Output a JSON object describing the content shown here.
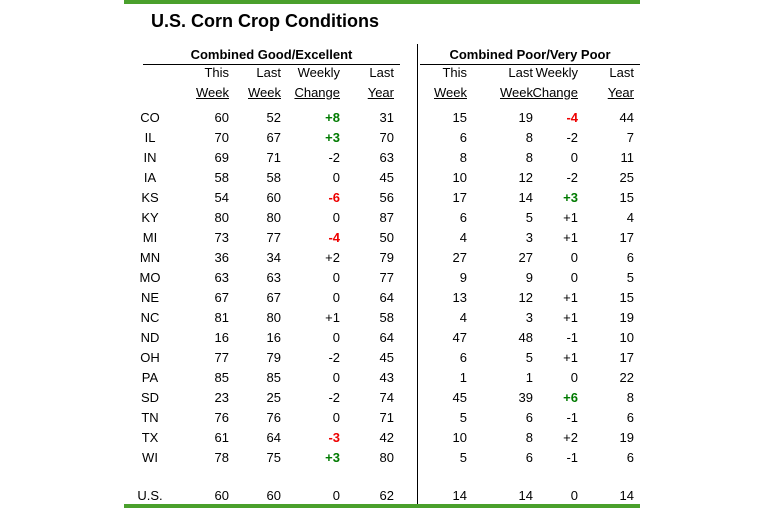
{
  "title": "U.S. Corn Crop Conditions",
  "headers": {
    "line1": [
      "This",
      "Last",
      "Weekly",
      "Last"
    ],
    "line2": [
      "Week",
      "Week",
      "Change",
      "Year"
    ]
  },
  "colors": {
    "accent_bar": "#4aa02c",
    "positive_change": "#007a00",
    "negative_change": "#ee0000",
    "divider": "#000000"
  },
  "chart_data": {
    "type": "table",
    "title": "U.S. Corn Crop Conditions",
    "column_groups": [
      "Combined Good/Excellent",
      "Combined Poor/Very Poor"
    ],
    "columns": [
      "This Week",
      "Last Week",
      "Weekly Change",
      "Last Year"
    ],
    "rows": [
      {
        "state": "CO",
        "good_excellent": [
          "60",
          "52",
          "+8",
          "31"
        ],
        "poor_very_poor": [
          "15",
          "19",
          "-4",
          "44"
        ]
      },
      {
        "state": "IL",
        "good_excellent": [
          "70",
          "67",
          "+3",
          "70"
        ],
        "poor_very_poor": [
          "6",
          "8",
          "-2",
          "7"
        ]
      },
      {
        "state": "IN",
        "good_excellent": [
          "69",
          "71",
          "-2",
          "63"
        ],
        "poor_very_poor": [
          "8",
          "8",
          "0",
          "11"
        ]
      },
      {
        "state": "IA",
        "good_excellent": [
          "58",
          "58",
          "0",
          "45"
        ],
        "poor_very_poor": [
          "10",
          "12",
          "-2",
          "25"
        ]
      },
      {
        "state": "KS",
        "good_excellent": [
          "54",
          "60",
          "-6",
          "56"
        ],
        "poor_very_poor": [
          "17",
          "14",
          "+3",
          "15"
        ]
      },
      {
        "state": "KY",
        "good_excellent": [
          "80",
          "80",
          "0",
          "87"
        ],
        "poor_very_poor": [
          "6",
          "5",
          "+1",
          "4"
        ]
      },
      {
        "state": "MI",
        "good_excellent": [
          "73",
          "77",
          "-4",
          "50"
        ],
        "poor_very_poor": [
          "4",
          "3",
          "+1",
          "17"
        ]
      },
      {
        "state": "MN",
        "good_excellent": [
          "36",
          "34",
          "+2",
          "79"
        ],
        "poor_very_poor": [
          "27",
          "27",
          "0",
          "6"
        ]
      },
      {
        "state": "MO",
        "good_excellent": [
          "63",
          "63",
          "0",
          "77"
        ],
        "poor_very_poor": [
          "9",
          "9",
          "0",
          "5"
        ]
      },
      {
        "state": "NE",
        "good_excellent": [
          "67",
          "67",
          "0",
          "64"
        ],
        "poor_very_poor": [
          "13",
          "12",
          "+1",
          "15"
        ]
      },
      {
        "state": "NC",
        "good_excellent": [
          "81",
          "80",
          "+1",
          "58"
        ],
        "poor_very_poor": [
          "4",
          "3",
          "+1",
          "19"
        ]
      },
      {
        "state": "ND",
        "good_excellent": [
          "16",
          "16",
          "0",
          "64"
        ],
        "poor_very_poor": [
          "47",
          "48",
          "-1",
          "10"
        ]
      },
      {
        "state": "OH",
        "good_excellent": [
          "77",
          "79",
          "-2",
          "45"
        ],
        "poor_very_poor": [
          "6",
          "5",
          "+1",
          "17"
        ]
      },
      {
        "state": "PA",
        "good_excellent": [
          "85",
          "85",
          "0",
          "43"
        ],
        "poor_very_poor": [
          "1",
          "1",
          "0",
          "22"
        ]
      },
      {
        "state": "SD",
        "good_excellent": [
          "23",
          "25",
          "-2",
          "74"
        ],
        "poor_very_poor": [
          "45",
          "39",
          "+6",
          "8"
        ]
      },
      {
        "state": "TN",
        "good_excellent": [
          "76",
          "76",
          "0",
          "71"
        ],
        "poor_very_poor": [
          "5",
          "6",
          "-1",
          "6"
        ]
      },
      {
        "state": "TX",
        "good_excellent": [
          "61",
          "64",
          "-3",
          "42"
        ],
        "poor_very_poor": [
          "10",
          "8",
          "+2",
          "19"
        ]
      },
      {
        "state": "WI",
        "good_excellent": [
          "78",
          "75",
          "+3",
          "80"
        ],
        "poor_very_poor": [
          "5",
          "6",
          "-1",
          "6"
        ]
      }
    ],
    "us_row": {
      "state": "U.S.",
      "good_excellent": [
        "60",
        "60",
        "0",
        "62"
      ],
      "poor_very_poor": [
        "14",
        "14",
        "0",
        "14"
      ]
    }
  }
}
